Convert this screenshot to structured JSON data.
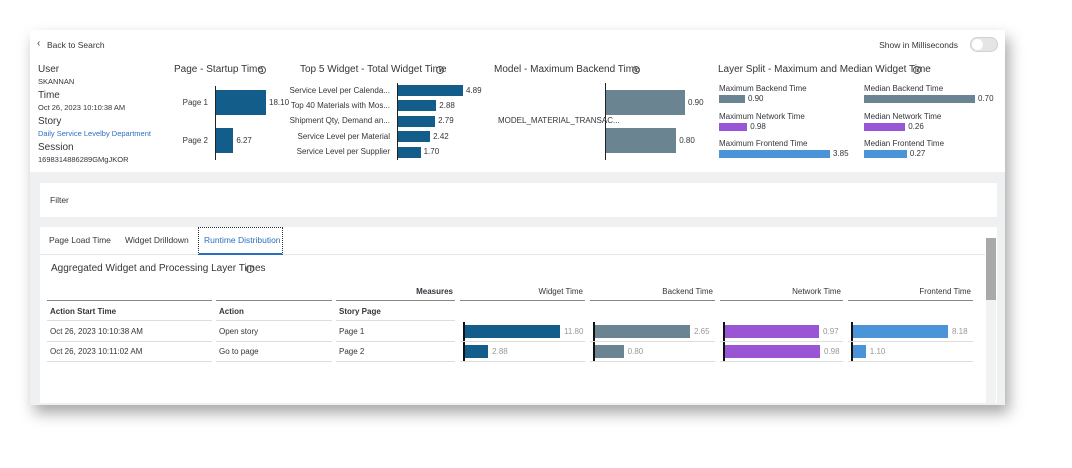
{
  "header": {
    "back": "Back to Search",
    "toggle_label": "Show in Milliseconds"
  },
  "info": [
    {
      "label": "User",
      "value": "SKANNAN"
    },
    {
      "label": "Time",
      "value": "Oct 26, 2023 10:10:38 AM"
    },
    {
      "label": "Story",
      "value": "Daily Service Levelby Department"
    },
    {
      "label": "Session",
      "value": "1698314886289GMgJKOR"
    }
  ],
  "startup_chart": {
    "type": "bar",
    "title": "Page - Startup Time",
    "categories": [
      "Page 1",
      "Page 2"
    ],
    "values": [
      18.1,
      6.27
    ],
    "value_labels": [
      "18.10",
      "6.27"
    ],
    "color": "#125d8a"
  },
  "widget_chart": {
    "type": "bar",
    "title": "Top 5 Widget - Total Widget Time",
    "categories": [
      "Service Level per Calenda...",
      "Top 40 Materials with Mos...",
      "Shipment Qty, Demand an...",
      "Service Level per Material",
      "Service Level per Supplier"
    ],
    "values": [
      4.89,
      2.88,
      2.79,
      2.42,
      1.7
    ],
    "value_labels": [
      "4.89",
      "2.88",
      "2.79",
      "2.42",
      "1.70"
    ],
    "color": "#125d8a"
  },
  "model_chart": {
    "type": "bar",
    "title": "Model - Maximum Backend Time",
    "categories": [
      "MODEL_MATERIAL_TRANSAC...",
      null
    ],
    "values": [
      0.9,
      0.8
    ],
    "value_labels": [
      "0.90",
      "0.80"
    ],
    "color": "#6a8591"
  },
  "layer_split": {
    "title": "Layer Split - Maximum and Median Widget Time",
    "groups": [
      {
        "series": [
          {
            "name": "Maximum Backend Time",
            "value": 0.9,
            "value_label": "0.90",
            "color": "#6a8591"
          },
          {
            "name": "Maximum Network Time",
            "value": 0.98,
            "value_label": "0.98",
            "color": "#9a55d4"
          },
          {
            "name": "Maximum Frontend Time",
            "value": 3.85,
            "value_label": "3.85",
            "color": "#4c94d8"
          }
        ]
      },
      {
        "series": [
          {
            "name": "Median Backend Time",
            "value": 0.7,
            "value_label": "0.70",
            "color": "#6a8591"
          },
          {
            "name": "Median Network Time",
            "value": 0.26,
            "value_label": "0.26",
            "color": "#9a55d4"
          },
          {
            "name": "Median Frontend Time",
            "value": 0.27,
            "value_label": "0.27",
            "color": "#4c94d8"
          }
        ]
      }
    ]
  },
  "filter": {
    "label": "Filter"
  },
  "tabs": [
    {
      "label": "Page Load Time",
      "active": false
    },
    {
      "label": "Widget Drilldown",
      "active": false
    },
    {
      "label": "Runtime Distribution",
      "active": true
    }
  ],
  "section_title": "Aggregated Widget and Processing Layer Times",
  "table": {
    "measures_label": "Measures",
    "dimension_headers": [
      "Action Start Time",
      "Action",
      "Story Page"
    ],
    "measure_headers": [
      {
        "name": "Widget Time",
        "color": "#125d8a"
      },
      {
        "name": "Backend Time",
        "color": "#6a8591"
      },
      {
        "name": "Network Time",
        "color": "#9a55d4"
      },
      {
        "name": "Frontend Time",
        "color": "#4c94d8"
      }
    ],
    "rows": [
      {
        "cells": [
          "Oct 26, 2023 10:10:38 AM",
          "Open story",
          "Page 1"
        ],
        "values": [
          11.8,
          2.65,
          0.97,
          8.18
        ],
        "value_labels": [
          "11.80",
          "2.65",
          "0.97",
          "8.18"
        ]
      },
      {
        "cells": [
          "Oct 26, 2023 10:11:02 AM",
          "Go to page",
          "Page 2"
        ],
        "values": [
          2.88,
          0.8,
          0.98,
          1.1
        ],
        "value_labels": [
          "2.88",
          "0.80",
          "0.98",
          "1.10"
        ]
      }
    ]
  }
}
